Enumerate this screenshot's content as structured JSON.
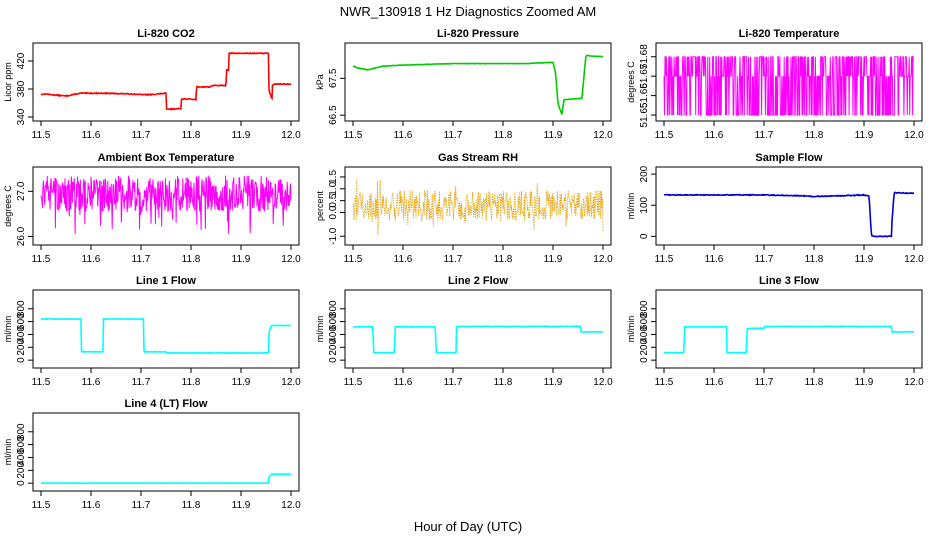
{
  "page": {
    "title": "NWR_130918  1 Hz Diagnostics Zoomed AM",
    "xlabel": "Hour of Day (UTC)"
  },
  "chart_data": [
    {
      "type": "line",
      "title": "Li-820 CO2",
      "ylabel": "Licor ppm",
      "color": "#ff0000",
      "xlim": [
        11.5,
        12.0
      ],
      "ylim": [
        340,
        440
      ],
      "yticks": [
        "340",
        "380",
        "420"
      ],
      "yticks_pos": [
        340,
        380,
        420
      ],
      "xticks": [
        "11.5",
        "11.6",
        "11.7",
        "11.8",
        "11.9",
        "12.0"
      ],
      "noise": 0.6,
      "x": [
        11.5,
        11.51,
        11.52,
        11.55,
        11.58,
        11.62,
        11.68,
        11.7,
        11.72,
        11.75,
        11.751,
        11.78,
        11.781,
        11.81,
        11.811,
        11.84,
        11.841,
        11.87,
        11.871,
        11.875,
        11.876,
        11.93,
        11.955,
        11.956,
        11.962,
        11.963,
        11.97,
        12.0
      ],
      "y": [
        372,
        373,
        372,
        370,
        374,
        374,
        373,
        372,
        372,
        374,
        351,
        352,
        366,
        365,
        383,
        383,
        385,
        385,
        408,
        407,
        431,
        431,
        431,
        377,
        366,
        386,
        387,
        387
      ],
      "series": [
        {
          "name": "CO2"
        }
      ]
    },
    {
      "type": "line",
      "title": "Li-820 Pressure",
      "ylabel": "kPa",
      "color": "#00cc00",
      "xlim": [
        11.5,
        12.0
      ],
      "ylim": [
        66.45,
        68.35
      ],
      "yticks": [
        "66.5",
        "67.5"
      ],
      "yticks_pos": [
        66.5,
        67.5
      ],
      "xticks": [
        "11.5",
        "11.6",
        "11.7",
        "11.8",
        "11.9",
        "12.0"
      ],
      "noise": 0.005,
      "x": [
        11.5,
        11.51,
        11.53,
        11.56,
        11.6,
        11.65,
        11.7,
        11.75,
        11.8,
        11.85,
        11.87,
        11.9,
        11.905,
        11.91,
        11.918,
        11.922,
        11.958,
        11.96,
        11.966,
        11.98,
        12.0
      ],
      "y": [
        67.83,
        67.78,
        67.73,
        67.83,
        67.86,
        67.88,
        67.9,
        67.9,
        67.9,
        67.9,
        67.92,
        67.93,
        67.65,
        66.8,
        66.52,
        66.92,
        66.96,
        67.3,
        68.12,
        68.1,
        68.09
      ],
      "series": [
        {
          "name": "Pressure"
        }
      ]
    },
    {
      "type": "area",
      "title": "Li-820 Temperature",
      "ylabel": "degrees C",
      "color": "#ff00ff",
      "xlim": [
        11.5,
        12.0
      ],
      "ylim": [
        51.649,
        51.685
      ],
      "yticks": [
        "51.65",
        "51.66",
        "51.67",
        "51.68"
      ],
      "yticks_pos": [
        51.65,
        51.66,
        51.67,
        51.68
      ],
      "xticks": [
        "11.5",
        "11.6",
        "11.7",
        "11.8",
        "11.9",
        "12.0"
      ],
      "bands": [
        [
          51.65,
          51.68
        ]
      ],
      "series": [
        {
          "name": "Temperature"
        }
      ]
    },
    {
      "type": "area",
      "title": "Ambient Box Temperature",
      "ylabel": "degrees C",
      "color": "#ff00ff",
      "xlim": [
        11.5,
        12.0
      ],
      "ylim": [
        25.9,
        27.45
      ],
      "yticks": [
        "26.0",
        "27.0"
      ],
      "yticks_pos": [
        26.0,
        27.0
      ],
      "xticks": [
        "11.5",
        "11.6",
        "11.7",
        "11.8",
        "11.9",
        "12.0"
      ],
      "bands": [
        [
          26.55,
          27.35
        ]
      ],
      "series": [
        {
          "name": "Box Temperature"
        }
      ]
    },
    {
      "type": "scatter",
      "title": "Gas Stream RH",
      "ylabel": "percent",
      "color": "#e69f00",
      "xlim": [
        11.5,
        12.0
      ],
      "ylim": [
        -1.2,
        1.75
      ],
      "yticks": [
        "-1.0",
        "0.0",
        "0.5",
        "1.0",
        "1.5"
      ],
      "yticks_pos": [
        -1.0,
        0.0,
        0.5,
        1.0,
        1.5
      ],
      "xticks": [
        "11.5",
        "11.6",
        "11.7",
        "11.8",
        "11.9",
        "12.0"
      ],
      "bands": [
        [
          -0.2,
          0.8
        ]
      ],
      "series": [
        {
          "name": "RH"
        }
      ]
    },
    {
      "type": "line",
      "title": "Sample Flow",
      "ylabel": "ml/min",
      "color": "#0000cc",
      "xlim": [
        11.5,
        12.0
      ],
      "ylim": [
        -15,
        210
      ],
      "yticks": [
        "0",
        "100",
        "200"
      ],
      "yticks_pos": [
        0,
        100,
        200
      ],
      "xticks": [
        "11.5",
        "11.6",
        "11.7",
        "11.8",
        "11.9",
        "12.0"
      ],
      "noise": 1.2,
      "x": [
        11.5,
        11.6,
        11.7,
        11.78,
        11.8,
        11.85,
        11.9,
        11.91,
        11.915,
        11.92,
        11.955,
        11.956,
        11.96,
        11.961,
        11.97,
        12.0
      ],
      "y": [
        133,
        133,
        133,
        130,
        128,
        130,
        133,
        130,
        2,
        0,
        0,
        50,
        135,
        140,
        140,
        138
      ],
      "series": [
        {
          "name": "Sample Flow"
        }
      ]
    },
    {
      "type": "line",
      "title": "Line 1 Flow",
      "ylabel": "ml/min",
      "color": "#00ffff",
      "xlim": [
        11.5,
        12.0
      ],
      "ylim": [
        -60,
        1030
      ],
      "yticks": [
        "0",
        "200",
        "400",
        "600",
        "800"
      ],
      "yticks_pos": [
        0,
        200,
        400,
        600,
        800
      ],
      "xticks": [
        "11.5",
        "11.6",
        "11.7",
        "11.8",
        "11.9",
        "12.0"
      ],
      "noise": 4,
      "x": [
        11.5,
        11.58,
        11.581,
        11.624,
        11.625,
        11.705,
        11.706,
        11.75,
        11.751,
        11.955,
        11.956,
        11.96,
        11.962,
        12.0
      ],
      "y": [
        640,
        640,
        130,
        130,
        640,
        640,
        130,
        130,
        112,
        112,
        430,
        530,
        540,
        540
      ],
      "series": [
        {
          "name": "Line 1"
        }
      ]
    },
    {
      "type": "line",
      "title": "Line 2 Flow",
      "ylabel": "ml/min",
      "color": "#00ffff",
      "xlim": [
        11.5,
        12.0
      ],
      "ylim": [
        -60,
        1030
      ],
      "yticks": [
        "0",
        "200",
        "400",
        "600",
        "800"
      ],
      "yticks_pos": [
        0,
        200,
        400,
        600,
        800
      ],
      "xticks": [
        "11.5",
        "11.6",
        "11.7",
        "11.8",
        "11.9",
        "12.0"
      ],
      "noise": 4,
      "x": [
        11.5,
        11.54,
        11.541,
        11.583,
        11.584,
        11.665,
        11.666,
        11.706,
        11.707,
        11.955,
        11.956,
        12.0
      ],
      "y": [
        520,
        520,
        115,
        115,
        520,
        520,
        115,
        115,
        525,
        525,
        440,
        440
      ],
      "series": [
        {
          "name": "Line 2"
        }
      ]
    },
    {
      "type": "line",
      "title": "Line 3 Flow",
      "ylabel": "ml/min",
      "color": "#00ffff",
      "xlim": [
        11.5,
        12.0
      ],
      "ylim": [
        -60,
        1030
      ],
      "yticks": [
        "0",
        "200",
        "400",
        "600",
        "800"
      ],
      "yticks_pos": [
        0,
        200,
        400,
        600,
        800
      ],
      "xticks": [
        "11.5",
        "11.6",
        "11.7",
        "11.8",
        "11.9",
        "12.0"
      ],
      "noise": 4,
      "x": [
        11.5,
        11.54,
        11.541,
        11.625,
        11.626,
        11.665,
        11.666,
        11.7,
        11.701,
        11.955,
        11.956,
        12.0
      ],
      "y": [
        115,
        115,
        520,
        520,
        115,
        115,
        495,
        495,
        525,
        525,
        440,
        440
      ],
      "series": [
        {
          "name": "Line 3"
        }
      ]
    },
    {
      "type": "line",
      "title": "Line 4 (LT) Flow",
      "ylabel": "ml/min",
      "color": "#00ffff",
      "xlim": [
        11.5,
        12.0
      ],
      "ylim": [
        -60,
        1030
      ],
      "yticks": [
        "0",
        "200",
        "400",
        "600",
        "800"
      ],
      "yticks_pos": [
        0,
        200,
        400,
        600,
        800
      ],
      "xticks": [
        "11.5",
        "11.6",
        "11.7",
        "11.8",
        "11.9",
        "12.0"
      ],
      "noise": 1,
      "x": [
        11.5,
        11.955,
        11.956,
        11.962,
        12.0
      ],
      "y": [
        0,
        0,
        100,
        140,
        140
      ],
      "series": [
        {
          "name": "Line 4"
        }
      ]
    }
  ]
}
